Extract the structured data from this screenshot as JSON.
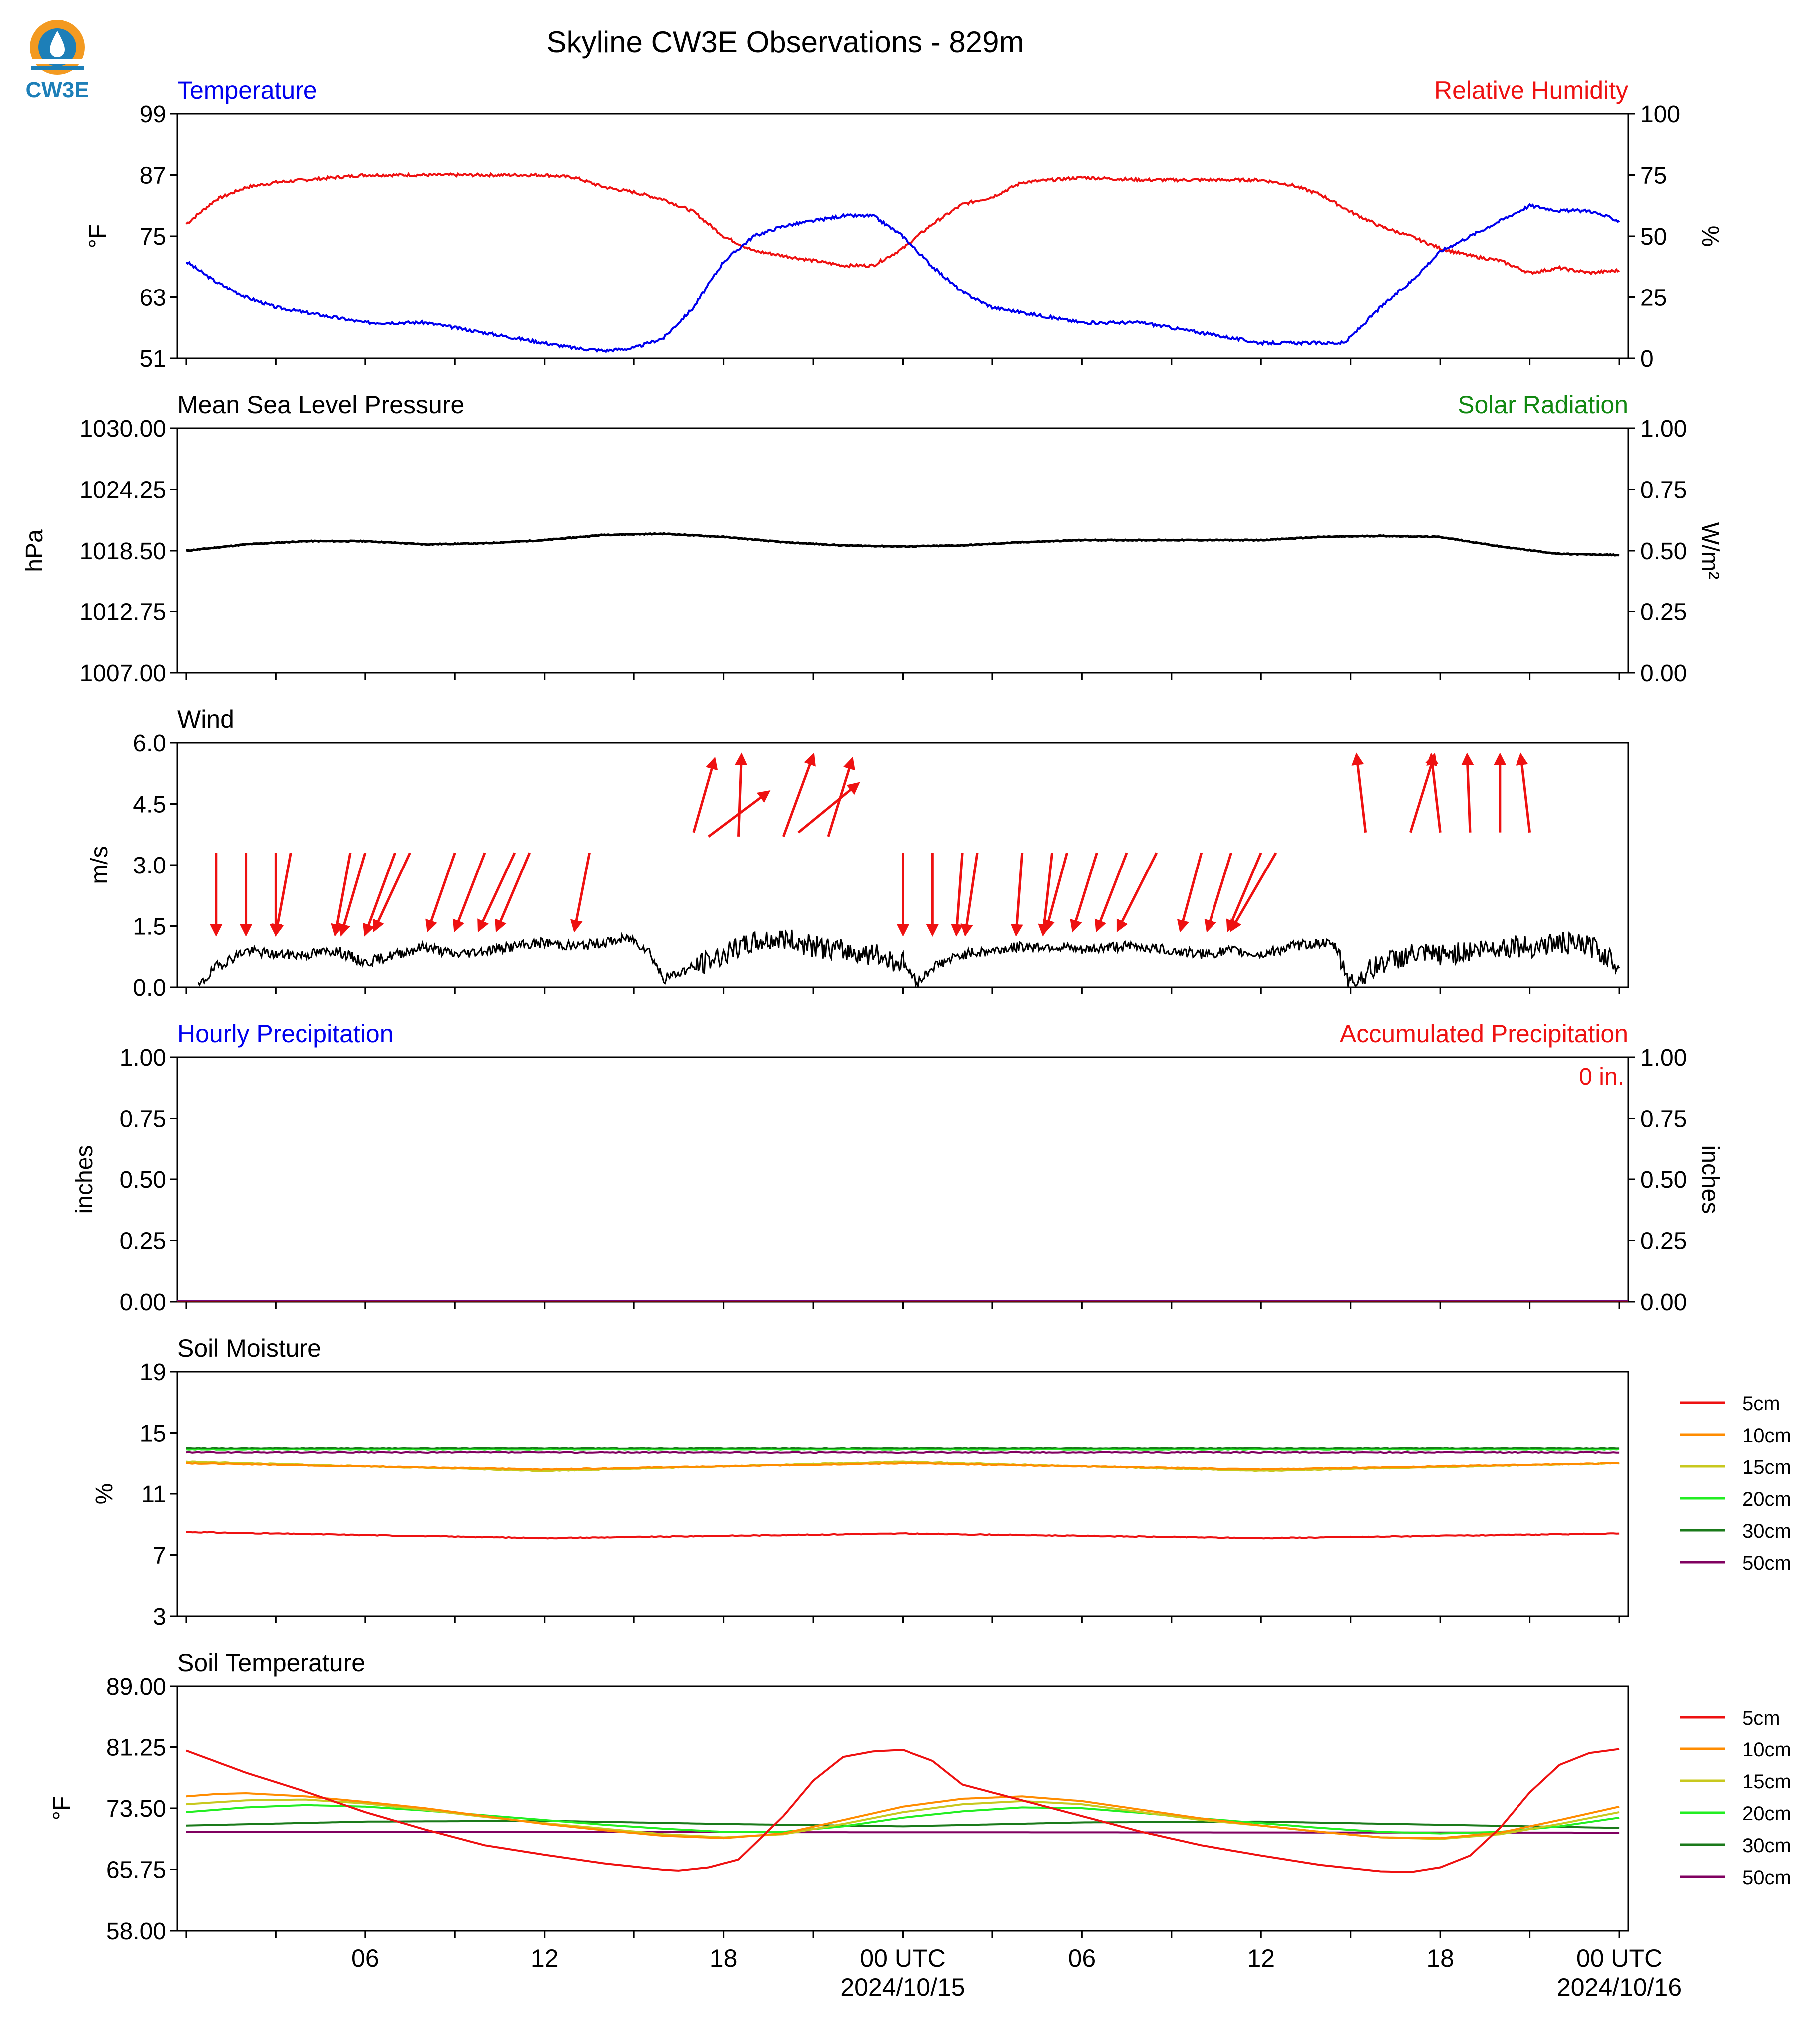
{
  "logo": {
    "text": "CW3E"
  },
  "title": "Skyline CW3E Observations - 829m",
  "colors": {
    "temp": "#0000ee",
    "rh": "#ee1111",
    "solar": "#118811",
    "black": "#000000",
    "s5": "#ee1111",
    "s10": "#ff8c00",
    "s15": "#c8c81e",
    "s20": "#22ee22",
    "s30": "#1a7a1a",
    "s50": "#800060"
  },
  "x_axis": {
    "ticks": [
      "06",
      "12",
      "18",
      "00 UTC",
      "06",
      "12",
      "18",
      "00 UTC"
    ],
    "date_labels": [
      "2024/10/15",
      "2024/10/16"
    ]
  },
  "panels": {
    "temp": {
      "left_title": "Temperature",
      "right_title": "Relative Humidity",
      "ylabel_left": "°F",
      "ylabel_right": "%",
      "yticks_left": [
        "99",
        "87",
        "75",
        "63",
        "51"
      ],
      "yticks_right": [
        "100",
        "75",
        "50",
        "25",
        "0"
      ]
    },
    "pressure": {
      "left_title": "Mean Sea Level Pressure",
      "right_title": "Solar Radiation",
      "ylabel_left": "hPa",
      "ylabel_right": "W/m²",
      "yticks_left": [
        "1030.00",
        "1024.25",
        "1018.50",
        "1012.75",
        "1007.00"
      ],
      "yticks_right": [
        "1.00",
        "0.75",
        "0.50",
        "0.25",
        "0.00"
      ]
    },
    "wind": {
      "left_title": "Wind",
      "ylabel_left": "m/s",
      "yticks_left": [
        "6.0",
        "4.5",
        "3.0",
        "1.5",
        "0.0"
      ]
    },
    "precip": {
      "left_title": "Hourly Precipitation",
      "right_title": "Accumulated Precipitation",
      "ylabel_left": "inches",
      "ylabel_right": "inches",
      "yticks_left": [
        "1.00",
        "0.75",
        "0.50",
        "0.25",
        "0.00"
      ],
      "yticks_right": [
        "1.00",
        "0.75",
        "0.50",
        "0.25",
        "0.00"
      ],
      "accum_text": "0 in."
    },
    "soilm": {
      "left_title": "Soil Moisture",
      "ylabel_left": "%",
      "yticks_left": [
        "19",
        "15",
        "11",
        "7",
        "3"
      ]
    },
    "soilt": {
      "left_title": "Soil Temperature",
      "ylabel_left": "°F",
      "yticks_left": [
        "89.00",
        "81.25",
        "73.50",
        "65.75",
        "58.00"
      ]
    }
  },
  "legend": [
    "5cm",
    "10cm",
    "15cm",
    "20cm",
    "30cm",
    "50cm"
  ],
  "chart_data": {
    "type": "line",
    "x_unit": "hours since 2024-10-14 00 UTC",
    "x_range": [
      -0.3,
      48.3
    ],
    "temperature_F": {
      "ylim": [
        51,
        99
      ],
      "x": [
        0,
        1,
        2,
        3,
        4,
        5,
        6,
        8,
        10,
        12,
        13,
        14,
        15,
        16,
        17,
        18,
        19,
        20,
        21,
        22,
        23,
        24,
        25,
        26,
        27,
        28,
        30,
        32,
        34,
        36,
        37,
        38,
        38.8,
        40,
        41,
        42,
        43,
        44,
        45,
        46,
        47,
        48
      ],
      "y": [
        70,
        66,
        63,
        61,
        60,
        59,
        58,
        58,
        56,
        54,
        53,
        52.5,
        53,
        55,
        61,
        70,
        75,
        77,
        78,
        79,
        79,
        75,
        69,
        64,
        61,
        60,
        58,
        58,
        56,
        54,
        54,
        54,
        54,
        61,
        66,
        72,
        75,
        78,
        81,
        80,
        80,
        78
      ]
    },
    "relative_humidity_pct": {
      "ylim": [
        0,
        100
      ],
      "x": [
        0,
        1,
        2,
        3,
        4,
        5,
        6,
        8,
        10,
        12,
        13,
        14,
        15,
        16,
        17,
        18,
        19,
        20,
        21,
        22,
        23,
        24,
        25,
        26,
        27,
        28,
        30,
        32,
        34,
        36,
        37,
        38,
        39,
        40,
        41,
        42,
        43,
        44,
        45,
        46,
        47,
        48
      ],
      "y": [
        55,
        65,
        70,
        72,
        73,
        74,
        75,
        75,
        75,
        75,
        74,
        70,
        68,
        65,
        60,
        50,
        44,
        42,
        40,
        38,
        38,
        45,
        55,
        63,
        66,
        72,
        74,
        73,
        73,
        73,
        71,
        67,
        60,
        54,
        50,
        45,
        42,
        40,
        35,
        37,
        35,
        36
      ]
    },
    "mslp_hPa": {
      "ylim": [
        1007,
        1030
      ],
      "x": [
        0,
        2,
        4,
        6,
        8,
        10,
        12,
        14,
        16,
        18,
        20,
        22,
        24,
        26,
        28,
        30,
        32,
        34,
        36,
        38,
        40,
        42,
        44,
        46,
        48
      ],
      "y": [
        1018.5,
        1019.1,
        1019.4,
        1019.4,
        1019.1,
        1019.2,
        1019.5,
        1020.0,
        1020.1,
        1019.8,
        1019.3,
        1019.0,
        1018.9,
        1019.0,
        1019.3,
        1019.5,
        1019.5,
        1019.5,
        1019.5,
        1019.8,
        1019.9,
        1019.8,
        1018.9,
        1018.2,
        1018.1
      ]
    },
    "solar_radiation_Wm2": {
      "ylim": [
        0,
        1
      ],
      "values": []
    },
    "wind_speed_ms": {
      "ylim": [
        0,
        6
      ],
      "x": [
        0.4,
        1,
        2,
        3,
        4,
        5,
        6,
        7,
        8,
        9,
        10,
        11,
        12,
        13,
        14,
        14.9,
        15.5,
        16,
        17,
        18,
        19,
        20,
        21,
        22,
        23,
        24,
        24.5,
        25,
        26,
        27,
        28,
        29,
        30,
        31,
        32,
        33,
        34,
        35,
        36,
        37,
        38,
        38.5,
        39,
        40,
        41,
        42,
        43,
        44,
        45,
        46,
        47,
        48
      ],
      "y": [
        0,
        0.5,
        0.9,
        0.8,
        0.8,
        0.9,
        0.6,
        0.8,
        1.0,
        0.8,
        0.9,
        1.0,
        1.1,
        1.0,
        1.1,
        1.2,
        0.9,
        0.2,
        0.5,
        0.8,
        1.1,
        1.2,
        1.0,
        0.9,
        0.8,
        0.6,
        0.1,
        0.5,
        0.8,
        0.9,
        1.0,
        1.0,
        0.9,
        1.0,
        1.0,
        0.9,
        0.8,
        0.9,
        0.8,
        1.0,
        1.1,
        1.0,
        0.1,
        0.6,
        0.8,
        0.8,
        0.9,
        1.0,
        1.0,
        1.1,
        1.0,
        0.6
      ]
    },
    "wind_vectors": {
      "x": [
        1,
        2,
        3,
        3.5,
        5.5,
        6,
        7,
        7.5,
        9,
        10,
        11,
        11.5,
        13.5,
        17,
        17.5,
        18.5,
        20,
        20.5,
        21.5,
        24,
        25,
        26,
        26.5,
        28,
        29,
        29.5,
        30.5,
        31.5,
        32.5,
        34,
        35,
        36,
        36.5,
        39.5,
        41,
        42,
        43,
        44,
        45
      ],
      "y_tail": [
        3.3,
        3.3,
        3.3,
        3.3,
        3.3,
        3.3,
        3.3,
        3.3,
        3.3,
        3.3,
        3.3,
        3.3,
        3.3,
        3.8,
        3.7,
        3.7,
        3.7,
        3.8,
        3.7,
        3.3,
        3.3,
        3.3,
        3.3,
        3.3,
        3.3,
        3.3,
        3.3,
        3.3,
        3.3,
        3.3,
        3.3,
        3.3,
        3.3,
        3.8,
        3.8,
        3.8,
        3.8,
        3.8,
        3.8
      ],
      "y_head": [
        1.3,
        1.3,
        1.3,
        1.3,
        1.3,
        1.3,
        1.3,
        1.4,
        1.4,
        1.4,
        1.4,
        1.4,
        1.4,
        5.6,
        4.8,
        5.7,
        5.7,
        5.0,
        5.6,
        1.3,
        1.3,
        1.3,
        1.3,
        1.3,
        1.3,
        1.4,
        1.4,
        1.4,
        1.4,
        1.4,
        1.4,
        1.4,
        1.4,
        5.7,
        5.7,
        5.7,
        5.7,
        5.7,
        5.7
      ],
      "dx": [
        0,
        0,
        0,
        -0.5,
        -0.5,
        -0.8,
        -1.0,
        -1.2,
        -0.9,
        -1.0,
        -1.2,
        -1.1,
        -0.5,
        0.7,
        2.0,
        0.1,
        1.0,
        2.0,
        0.8,
        0,
        0,
        -0.2,
        -0.4,
        -0.2,
        -0.3,
        -0.7,
        -0.8,
        -1.0,
        -1.3,
        -0.7,
        -0.8,
        -1.1,
        -1.5,
        -0.3,
        0.8,
        -0.3,
        -0.1,
        0,
        -0.3
      ]
    },
    "hourly_precip_in": {
      "ylim": [
        0,
        1
      ],
      "values": [
        0
      ]
    },
    "accumulated_precip_in": {
      "ylim": [
        0,
        1
      ],
      "values": [
        0
      ]
    },
    "soil_moisture_pct": {
      "ylim": [
        3,
        19
      ],
      "series": [
        {
          "name": "5cm",
          "x": [
            0,
            12,
            24,
            36,
            48
          ],
          "y": [
            8.5,
            8.1,
            8.4,
            8.1,
            8.4
          ]
        },
        {
          "name": "10cm",
          "x": [
            0,
            12,
            24,
            36,
            48
          ],
          "y": [
            13.0,
            12.6,
            13.0,
            12.6,
            13.0
          ]
        },
        {
          "name": "15cm",
          "x": [
            0,
            12,
            24,
            36,
            48
          ],
          "y": [
            13.1,
            12.5,
            13.1,
            12.5,
            13.0
          ]
        },
        {
          "name": "20cm",
          "x": [
            0,
            48
          ],
          "y": [
            13.9,
            13.9
          ]
        },
        {
          "name": "30cm",
          "x": [
            0,
            48
          ],
          "y": [
            14.0,
            14.0
          ]
        },
        {
          "name": "50cm",
          "x": [
            0,
            48
          ],
          "y": [
            13.7,
            13.7
          ]
        }
      ]
    },
    "soil_temperature_F": {
      "ylim": [
        58,
        89
      ],
      "series": [
        {
          "name": "5cm",
          "x": [
            0,
            2,
            4,
            6,
            8,
            10,
            12,
            14,
            16,
            16.5,
            17.5,
            18.5,
            20,
            21,
            22,
            23,
            24,
            25,
            26,
            28,
            30,
            32,
            34,
            36,
            38,
            40,
            41,
            42,
            43,
            44,
            45,
            46,
            47,
            48
          ],
          "y": [
            80.8,
            78.0,
            75.6,
            73.0,
            70.8,
            68.8,
            67.6,
            66.5,
            65.7,
            65.6,
            66.0,
            67.0,
            72.5,
            77.0,
            80.0,
            80.7,
            80.9,
            79.5,
            76.5,
            74.5,
            72.5,
            70.5,
            68.8,
            67.5,
            66.3,
            65.5,
            65.4,
            66.0,
            67.5,
            71.0,
            75.5,
            79.0,
            80.5,
            81.0
          ]
        },
        {
          "name": "10cm",
          "x": [
            0,
            1,
            2,
            4,
            6,
            8,
            10,
            12,
            14,
            16,
            18,
            20,
            22,
            24,
            26,
            28,
            30,
            32,
            34,
            36,
            38,
            40,
            42,
            44,
            46,
            48
          ],
          "y": [
            75.0,
            75.3,
            75.4,
            75.0,
            74.3,
            73.5,
            72.5,
            71.5,
            70.7,
            70.0,
            69.7,
            70.3,
            72.0,
            73.7,
            74.7,
            75.0,
            74.4,
            73.3,
            72.2,
            71.3,
            70.5,
            69.8,
            69.7,
            70.4,
            72.0,
            73.7
          ]
        },
        {
          "name": "15cm",
          "x": [
            0,
            2,
            4,
            6,
            8,
            10,
            12,
            14,
            16,
            18,
            20,
            22,
            24,
            26,
            28,
            30,
            32,
            34,
            36,
            38,
            40,
            42,
            44,
            46,
            48
          ],
          "y": [
            74.0,
            74.5,
            74.6,
            74.1,
            73.3,
            72.4,
            71.6,
            70.9,
            70.2,
            69.8,
            70.2,
            71.5,
            73.0,
            74.0,
            74.4,
            74.0,
            73.0,
            72.0,
            71.3,
            70.5,
            69.8,
            69.6,
            70.2,
            71.5,
            73.0
          ]
        },
        {
          "name": "20cm",
          "x": [
            0,
            2,
            4,
            6,
            8,
            10,
            12,
            14,
            16,
            18,
            20,
            22,
            24,
            26,
            28,
            30,
            32,
            34,
            36,
            38,
            40,
            42,
            44,
            46,
            48
          ],
          "y": [
            73.0,
            73.6,
            73.9,
            73.7,
            73.2,
            72.6,
            72.0,
            71.4,
            70.9,
            70.5,
            70.5,
            71.2,
            72.3,
            73.1,
            73.6,
            73.5,
            72.9,
            72.2,
            71.6,
            71.0,
            70.5,
            70.3,
            70.5,
            71.2,
            72.3
          ]
        },
        {
          "name": "30cm",
          "x": [
            0,
            6,
            12,
            18,
            24,
            30,
            36,
            42,
            48
          ],
          "y": [
            71.3,
            71.8,
            71.9,
            71.5,
            71.2,
            71.7,
            71.8,
            71.4,
            71.0
          ]
        },
        {
          "name": "50cm",
          "x": [
            0,
            48
          ],
          "y": [
            70.5,
            70.4
          ]
        }
      ]
    }
  }
}
